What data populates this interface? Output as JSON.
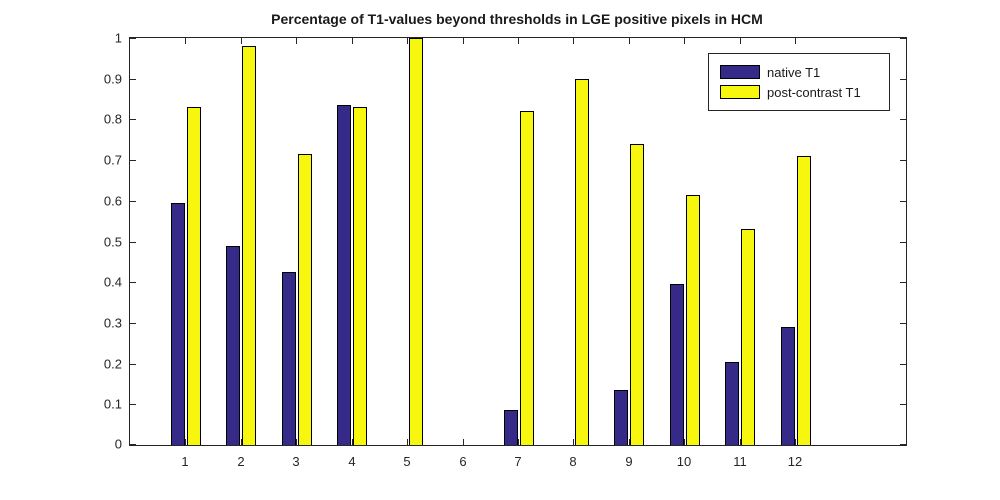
{
  "title": "Percentage of T1-values beyond thresholds in LGE positive pixels in HCM",
  "colors": {
    "native_t1": "#352A87",
    "post_contrast_t1": "#F7F60E",
    "axis": "#262626",
    "background": "#FFFFFF"
  },
  "legend": {
    "position": "top-right",
    "entries": [
      {
        "label": "native T1",
        "color": "#352A87"
      },
      {
        "label": "post-contrast T1",
        "color": "#F7F60E"
      }
    ]
  },
  "chart_data": {
    "type": "bar",
    "title": "Percentage of T1-values beyond thresholds in LGE positive pixels in HCM",
    "xlabel": "",
    "ylabel": "",
    "categories": [
      "1",
      "2",
      "3",
      "4",
      "5",
      "6",
      "7",
      "8",
      "9",
      "10",
      "11",
      "12"
    ],
    "series": [
      {
        "name": "native T1",
        "color": "#352A87",
        "values": [
          0.595,
          0.49,
          0.425,
          0.835,
          0,
          0,
          0.085,
          0,
          0.135,
          0.395,
          0.205,
          0.29
        ]
      },
      {
        "name": "post-contrast T1",
        "color": "#F7F60E",
        "values": [
          0.83,
          0.98,
          0.715,
          0.83,
          1.0,
          0,
          0.82,
          0.9,
          0.74,
          0.615,
          0.53,
          0.71
        ]
      }
    ],
    "ylim": [
      0,
      1
    ],
    "yticks": [
      0,
      0.1,
      0.2,
      0.3,
      0.4,
      0.5,
      0.6,
      0.7,
      0.8,
      0.9,
      1
    ],
    "ytick_labels": [
      "0",
      "0.1",
      "0.2",
      "0.3",
      "0.4",
      "0.5",
      "0.6",
      "0.7",
      "0.8",
      "0.9",
      "1"
    ],
    "xlim": [
      0,
      14
    ],
    "grid": false,
    "box": true,
    "legend_position": "top-right"
  }
}
